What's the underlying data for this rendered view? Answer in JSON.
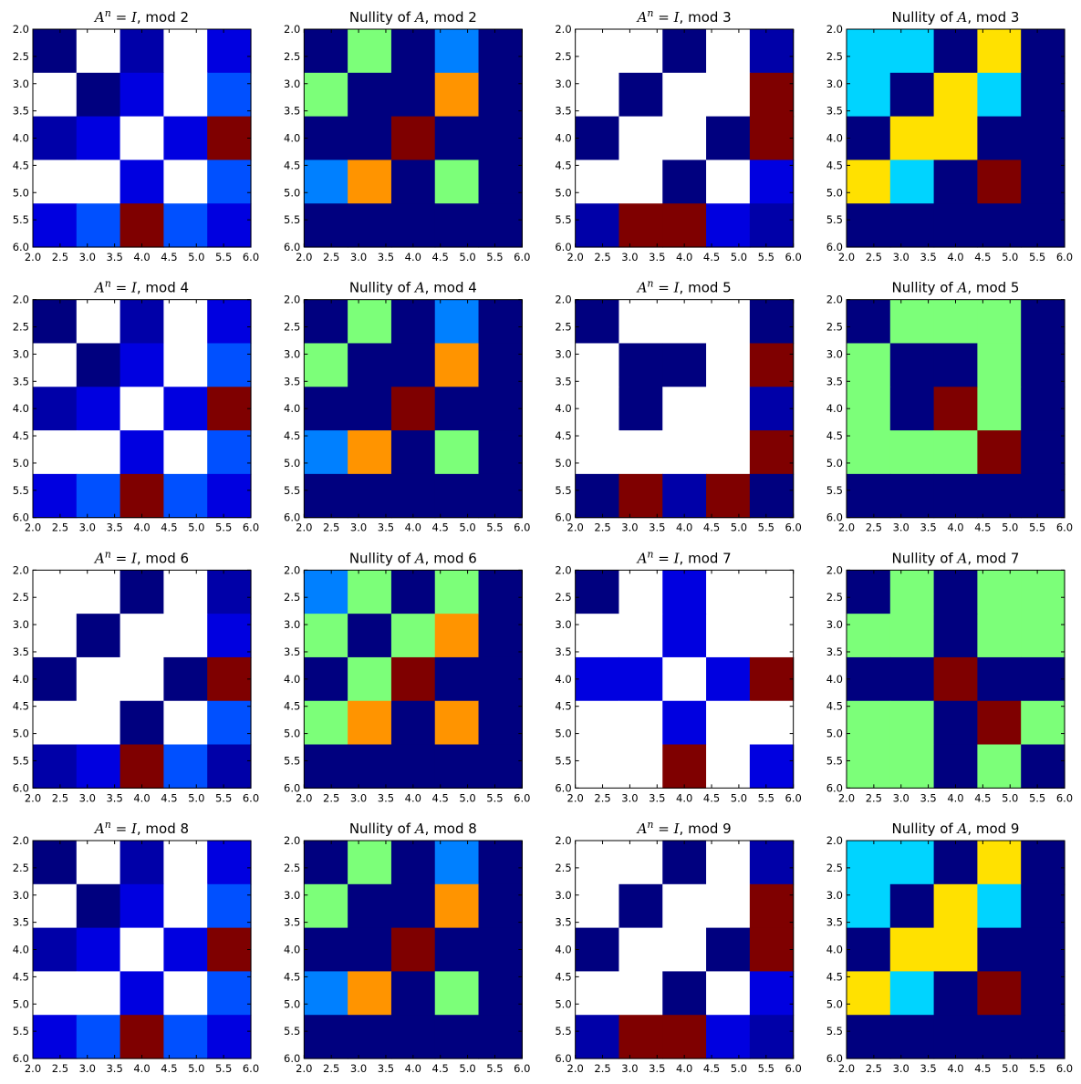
{
  "figure": {
    "background": "#ffffff"
  },
  "palette": {
    "-1": "#ffffff",
    "0": "#00007f",
    "1": "#0000a8",
    "2": "#0000e0",
    "3": "#0050ff",
    "4": "#0080ff",
    "5": "#00d4ff",
    "6": "#7cff79",
    "7": "#ffe100",
    "8": "#ff9400",
    "9": "#7f0000"
  },
  "chart_data": [
    {
      "type": "heatmap",
      "title_pre": "",
      "title_math": "A^n = I",
      "title_post": ", mod 2",
      "xlim": [
        2,
        6
      ],
      "ylim": [
        6,
        2
      ],
      "xticks": [
        "2.0",
        "2.5",
        "3.0",
        "3.5",
        "4.0",
        "4.5",
        "5.0",
        "5.5",
        "6.0"
      ],
      "yticks": [
        "2.0",
        "2.5",
        "3.0",
        "3.5",
        "4.0",
        "4.5",
        "5.0",
        "5.5",
        "6.0"
      ],
      "values": [
        [
          0,
          -1,
          1,
          -1,
          2
        ],
        [
          -1,
          0,
          2,
          -1,
          3
        ],
        [
          1,
          2,
          -1,
          2,
          9
        ],
        [
          -1,
          -1,
          2,
          -1,
          3
        ],
        [
          2,
          3,
          9,
          3,
          2
        ]
      ]
    },
    {
      "type": "heatmap",
      "title_pre": "Nullity of ",
      "title_math": "A",
      "title_post": ", mod 2",
      "xlim": [
        2,
        6
      ],
      "ylim": [
        6,
        2
      ],
      "xticks": [
        "2.0",
        "2.5",
        "3.0",
        "3.5",
        "4.0",
        "4.5",
        "5.0",
        "5.5",
        "6.0"
      ],
      "yticks": [
        "2.0",
        "2.5",
        "3.0",
        "3.5",
        "4.0",
        "4.5",
        "5.0",
        "5.5",
        "6.0"
      ],
      "values": [
        [
          0,
          6,
          0,
          4,
          0
        ],
        [
          6,
          0,
          0,
          8,
          0
        ],
        [
          0,
          0,
          9,
          0,
          0
        ],
        [
          4,
          8,
          0,
          6,
          0
        ],
        [
          0,
          0,
          0,
          0,
          0
        ]
      ]
    },
    {
      "type": "heatmap",
      "title_pre": "",
      "title_math": "A^n = I",
      "title_post": ", mod 3",
      "xlim": [
        2,
        6
      ],
      "ylim": [
        6,
        2
      ],
      "xticks": [
        "2.0",
        "2.5",
        "3.0",
        "3.5",
        "4.0",
        "4.5",
        "5.0",
        "5.5",
        "6.0"
      ],
      "yticks": [
        "2.0",
        "2.5",
        "3.0",
        "3.5",
        "4.0",
        "4.5",
        "5.0",
        "5.5",
        "6.0"
      ],
      "values": [
        [
          -1,
          -1,
          0,
          -1,
          1
        ],
        [
          -1,
          0,
          -1,
          -1,
          9
        ],
        [
          0,
          -1,
          -1,
          0,
          9
        ],
        [
          -1,
          -1,
          0,
          -1,
          2
        ],
        [
          1,
          9,
          9,
          2,
          1
        ]
      ]
    },
    {
      "type": "heatmap",
      "title_pre": "Nullity of ",
      "title_math": "A",
      "title_post": ", mod 3",
      "xlim": [
        2,
        6
      ],
      "ylim": [
        6,
        2
      ],
      "xticks": [
        "2.0",
        "2.5",
        "3.0",
        "3.5",
        "4.0",
        "4.5",
        "5.0",
        "5.5",
        "6.0"
      ],
      "yticks": [
        "2.0",
        "2.5",
        "3.0",
        "3.5",
        "4.0",
        "4.5",
        "5.0",
        "5.5",
        "6.0"
      ],
      "values": [
        [
          5,
          5,
          0,
          7,
          0
        ],
        [
          5,
          0,
          7,
          5,
          0
        ],
        [
          0,
          7,
          7,
          0,
          0
        ],
        [
          7,
          5,
          0,
          9,
          0
        ],
        [
          0,
          0,
          0,
          0,
          0
        ]
      ]
    },
    {
      "type": "heatmap",
      "title_pre": "",
      "title_math": "A^n = I",
      "title_post": ", mod 4",
      "xlim": [
        2,
        6
      ],
      "ylim": [
        6,
        2
      ],
      "xticks": [
        "2.0",
        "2.5",
        "3.0",
        "3.5",
        "4.0",
        "4.5",
        "5.0",
        "5.5",
        "6.0"
      ],
      "yticks": [
        "2.0",
        "2.5",
        "3.0",
        "3.5",
        "4.0",
        "4.5",
        "5.0",
        "5.5",
        "6.0"
      ],
      "values": [
        [
          0,
          -1,
          1,
          -1,
          2
        ],
        [
          -1,
          0,
          2,
          -1,
          3
        ],
        [
          1,
          2,
          -1,
          2,
          9
        ],
        [
          -1,
          -1,
          2,
          -1,
          3
        ],
        [
          2,
          3,
          9,
          3,
          2
        ]
      ]
    },
    {
      "type": "heatmap",
      "title_pre": "Nullity of ",
      "title_math": "A",
      "title_post": ", mod 4",
      "xlim": [
        2,
        6
      ],
      "ylim": [
        6,
        2
      ],
      "xticks": [
        "2.0",
        "2.5",
        "3.0",
        "3.5",
        "4.0",
        "4.5",
        "5.0",
        "5.5",
        "6.0"
      ],
      "yticks": [
        "2.0",
        "2.5",
        "3.0",
        "3.5",
        "4.0",
        "4.5",
        "5.0",
        "5.5",
        "6.0"
      ],
      "values": [
        [
          0,
          6,
          0,
          4,
          0
        ],
        [
          6,
          0,
          0,
          8,
          0
        ],
        [
          0,
          0,
          9,
          0,
          0
        ],
        [
          4,
          8,
          0,
          6,
          0
        ],
        [
          0,
          0,
          0,
          0,
          0
        ]
      ]
    },
    {
      "type": "heatmap",
      "title_pre": "",
      "title_math": "A^n = I",
      "title_post": ", mod 5",
      "xlim": [
        2,
        6
      ],
      "ylim": [
        6,
        2
      ],
      "xticks": [
        "2.0",
        "2.5",
        "3.0",
        "3.5",
        "4.0",
        "4.5",
        "5.0",
        "5.5",
        "6.0"
      ],
      "yticks": [
        "2.0",
        "2.5",
        "3.0",
        "3.5",
        "4.0",
        "4.5",
        "5.0",
        "5.5",
        "6.0"
      ],
      "values": [
        [
          0,
          -1,
          -1,
          -1,
          0
        ],
        [
          -1,
          0,
          0,
          -1,
          9
        ],
        [
          -1,
          0,
          -1,
          -1,
          1
        ],
        [
          -1,
          -1,
          -1,
          -1,
          9
        ],
        [
          0,
          9,
          1,
          9,
          0
        ]
      ]
    },
    {
      "type": "heatmap",
      "title_pre": "Nullity of ",
      "title_math": "A",
      "title_post": ", mod 5",
      "xlim": [
        2,
        6
      ],
      "ylim": [
        6,
        2
      ],
      "xticks": [
        "2.0",
        "2.5",
        "3.0",
        "3.5",
        "4.0",
        "4.5",
        "5.0",
        "5.5",
        "6.0"
      ],
      "yticks": [
        "2.0",
        "2.5",
        "3.0",
        "3.5",
        "4.0",
        "4.5",
        "5.0",
        "5.5",
        "6.0"
      ],
      "values": [
        [
          0,
          6,
          6,
          6,
          0
        ],
        [
          6,
          0,
          0,
          6,
          0
        ],
        [
          6,
          0,
          9,
          6,
          0
        ],
        [
          6,
          6,
          6,
          9,
          0
        ],
        [
          0,
          0,
          0,
          0,
          0
        ]
      ]
    },
    {
      "type": "heatmap",
      "title_pre": "",
      "title_math": "A^n = I",
      "title_post": ", mod 6",
      "xlim": [
        2,
        6
      ],
      "ylim": [
        6,
        2
      ],
      "xticks": [
        "2.0",
        "2.5",
        "3.0",
        "3.5",
        "4.0",
        "4.5",
        "5.0",
        "5.5",
        "6.0"
      ],
      "yticks": [
        "2.0",
        "2.5",
        "3.0",
        "3.5",
        "4.0",
        "4.5",
        "5.0",
        "5.5",
        "6.0"
      ],
      "values": [
        [
          -1,
          -1,
          0,
          -1,
          1
        ],
        [
          -1,
          0,
          -1,
          -1,
          2
        ],
        [
          0,
          -1,
          -1,
          0,
          9
        ],
        [
          -1,
          -1,
          0,
          -1,
          3
        ],
        [
          1,
          2,
          9,
          3,
          1
        ]
      ]
    },
    {
      "type": "heatmap",
      "title_pre": "Nullity of ",
      "title_math": "A",
      "title_post": ", mod 6",
      "xlim": [
        2,
        6
      ],
      "ylim": [
        6,
        2
      ],
      "xticks": [
        "2.0",
        "2.5",
        "3.0",
        "3.5",
        "4.0",
        "4.5",
        "5.0",
        "5.5",
        "6.0"
      ],
      "yticks": [
        "2.0",
        "2.5",
        "3.0",
        "3.5",
        "4.0",
        "4.5",
        "5.0",
        "5.5",
        "6.0"
      ],
      "values": [
        [
          4,
          6,
          0,
          6,
          0
        ],
        [
          6,
          0,
          6,
          8,
          0
        ],
        [
          0,
          6,
          9,
          0,
          0
        ],
        [
          6,
          8,
          0,
          8,
          0
        ],
        [
          0,
          0,
          0,
          0,
          0
        ]
      ]
    },
    {
      "type": "heatmap",
      "title_pre": "",
      "title_math": "A^n = I",
      "title_post": ", mod 7",
      "xlim": [
        2,
        6
      ],
      "ylim": [
        6,
        2
      ],
      "xticks": [
        "2.0",
        "2.5",
        "3.0",
        "3.5",
        "4.0",
        "4.5",
        "5.0",
        "5.5",
        "6.0"
      ],
      "yticks": [
        "2.0",
        "2.5",
        "3.0",
        "3.5",
        "4.0",
        "4.5",
        "5.0",
        "5.5",
        "6.0"
      ],
      "values": [
        [
          0,
          -1,
          2,
          -1,
          -1
        ],
        [
          -1,
          -1,
          2,
          -1,
          -1
        ],
        [
          2,
          2,
          -1,
          2,
          9
        ],
        [
          -1,
          -1,
          2,
          -1,
          -1
        ],
        [
          -1,
          -1,
          9,
          -1,
          2
        ]
      ]
    },
    {
      "type": "heatmap",
      "title_pre": "Nullity of ",
      "title_math": "A",
      "title_post": ", mod 7",
      "xlim": [
        2,
        6
      ],
      "ylim": [
        6,
        2
      ],
      "xticks": [
        "2.0",
        "2.5",
        "3.0",
        "3.5",
        "4.0",
        "4.5",
        "5.0",
        "5.5",
        "6.0"
      ],
      "yticks": [
        "2.0",
        "2.5",
        "3.0",
        "3.5",
        "4.0",
        "4.5",
        "5.0",
        "5.5",
        "6.0"
      ],
      "values": [
        [
          0,
          6,
          0,
          6,
          6
        ],
        [
          6,
          6,
          0,
          6,
          6
        ],
        [
          0,
          0,
          9,
          0,
          0
        ],
        [
          6,
          6,
          0,
          9,
          6
        ],
        [
          6,
          6,
          0,
          6,
          0
        ]
      ]
    },
    {
      "type": "heatmap",
      "title_pre": "",
      "title_math": "A^n = I",
      "title_post": ", mod 8",
      "xlim": [
        2,
        6
      ],
      "ylim": [
        6,
        2
      ],
      "xticks": [
        "2.0",
        "2.5",
        "3.0",
        "3.5",
        "4.0",
        "4.5",
        "5.0",
        "5.5",
        "6.0"
      ],
      "yticks": [
        "2.0",
        "2.5",
        "3.0",
        "3.5",
        "4.0",
        "4.5",
        "5.0",
        "5.5",
        "6.0"
      ],
      "values": [
        [
          0,
          -1,
          1,
          -1,
          2
        ],
        [
          -1,
          0,
          2,
          -1,
          3
        ],
        [
          1,
          2,
          -1,
          2,
          9
        ],
        [
          -1,
          -1,
          2,
          -1,
          3
        ],
        [
          2,
          3,
          9,
          3,
          2
        ]
      ]
    },
    {
      "type": "heatmap",
      "title_pre": "Nullity of ",
      "title_math": "A",
      "title_post": ", mod 8",
      "xlim": [
        2,
        6
      ],
      "ylim": [
        6,
        2
      ],
      "xticks": [
        "2.0",
        "2.5",
        "3.0",
        "3.5",
        "4.0",
        "4.5",
        "5.0",
        "5.5",
        "6.0"
      ],
      "yticks": [
        "2.0",
        "2.5",
        "3.0",
        "3.5",
        "4.0",
        "4.5",
        "5.0",
        "5.5",
        "6.0"
      ],
      "values": [
        [
          0,
          6,
          0,
          4,
          0
        ],
        [
          6,
          0,
          0,
          8,
          0
        ],
        [
          0,
          0,
          9,
          0,
          0
        ],
        [
          4,
          8,
          0,
          6,
          0
        ],
        [
          0,
          0,
          0,
          0,
          0
        ]
      ]
    },
    {
      "type": "heatmap",
      "title_pre": "",
      "title_math": "A^n = I",
      "title_post": ", mod 9",
      "xlim": [
        2,
        6
      ],
      "ylim": [
        6,
        2
      ],
      "xticks": [
        "2.0",
        "2.5",
        "3.0",
        "3.5",
        "4.0",
        "4.5",
        "5.0",
        "5.5",
        "6.0"
      ],
      "yticks": [
        "2.0",
        "2.5",
        "3.0",
        "3.5",
        "4.0",
        "4.5",
        "5.0",
        "5.5",
        "6.0"
      ],
      "values": [
        [
          -1,
          -1,
          0,
          -1,
          1
        ],
        [
          -1,
          0,
          -1,
          -1,
          9
        ],
        [
          0,
          -1,
          -1,
          0,
          9
        ],
        [
          -1,
          -1,
          0,
          -1,
          2
        ],
        [
          1,
          9,
          9,
          2,
          1
        ]
      ]
    },
    {
      "type": "heatmap",
      "title_pre": "Nullity of ",
      "title_math": "A",
      "title_post": ", mod 9",
      "xlim": [
        2,
        6
      ],
      "ylim": [
        6,
        2
      ],
      "xticks": [
        "2.0",
        "2.5",
        "3.0",
        "3.5",
        "4.0",
        "4.5",
        "5.0",
        "5.5",
        "6.0"
      ],
      "yticks": [
        "2.0",
        "2.5",
        "3.0",
        "3.5",
        "4.0",
        "4.5",
        "5.0",
        "5.5",
        "6.0"
      ],
      "values": [
        [
          5,
          5,
          0,
          7,
          0
        ],
        [
          5,
          0,
          7,
          5,
          0
        ],
        [
          0,
          7,
          7,
          0,
          0
        ],
        [
          7,
          5,
          0,
          9,
          0
        ],
        [
          0,
          0,
          0,
          0,
          0
        ]
      ]
    }
  ]
}
